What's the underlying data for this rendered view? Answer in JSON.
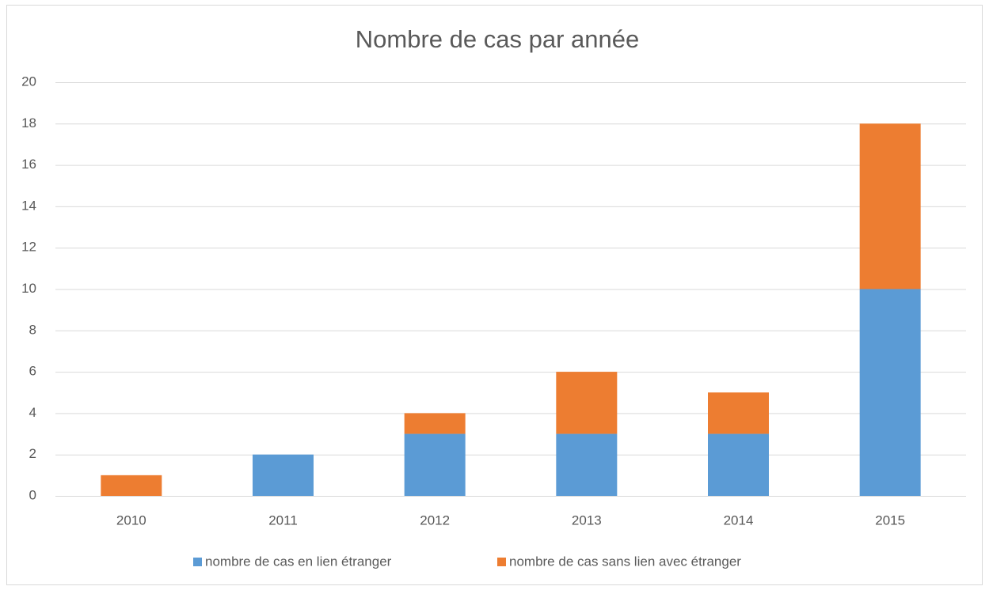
{
  "chart_data": {
    "type": "stacked_bar",
    "title": "Nombre de cas par année",
    "categories": [
      "2010",
      "2011",
      "2012",
      "2013",
      "2014",
      "2015"
    ],
    "series": [
      {
        "name": "nombre de cas en lien étranger",
        "color": "#5b9bd5",
        "values": [
          0,
          2,
          3,
          3,
          3,
          10
        ]
      },
      {
        "name": "nombre de cas sans lien avec étranger",
        "color": "#ed7d31",
        "values": [
          1,
          0,
          1,
          3,
          2,
          8
        ]
      }
    ],
    "ylim": [
      0,
      20
    ],
    "yticks": [
      0,
      2,
      4,
      6,
      8,
      10,
      12,
      14,
      16,
      18,
      20
    ],
    "grid": true,
    "legend": "bottom"
  }
}
